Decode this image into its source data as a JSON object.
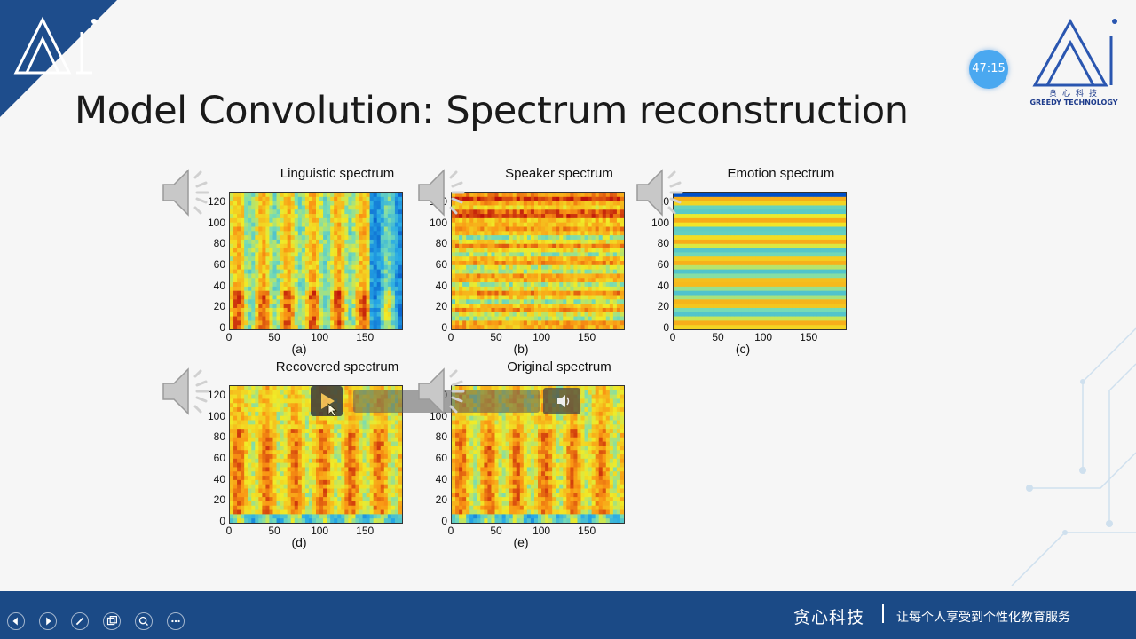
{
  "slide": {
    "title": "Model Convolution: Spectrum reconstruction",
    "timer": "47:15"
  },
  "logo": {
    "cn": "贪心科技",
    "en": "GREEDY TECHNOLOGY"
  },
  "colors": {
    "brand_blue": "#1e3c8c",
    "footer_blue": "#1b4a86",
    "timer_blue": "#4aa8f0"
  },
  "panels": [
    {
      "title": "Linguistic spectrum",
      "sublabel": "(a)",
      "y_ticks": [
        "0",
        "20",
        "40",
        "60",
        "80",
        "100",
        "120"
      ],
      "x_ticks": [
        "0",
        "50",
        "100",
        "150"
      ]
    },
    {
      "title": "Speaker spectrum",
      "sublabel": "(b)",
      "y_ticks": [
        "0",
        "20",
        "40",
        "60",
        "80",
        "100",
        "120"
      ],
      "x_ticks": [
        "0",
        "50",
        "100",
        "150"
      ]
    },
    {
      "title": "Emotion spectrum",
      "sublabel": "(c)",
      "y_ticks": [
        "0",
        "20",
        "40",
        "60",
        "80",
        "100",
        "120"
      ],
      "x_ticks": [
        "0",
        "50",
        "100",
        "150"
      ]
    },
    {
      "title": "Recovered spectrum",
      "sublabel": "(d)",
      "y_ticks": [
        "0",
        "20",
        "40",
        "60",
        "80",
        "100",
        "120"
      ],
      "x_ticks": [
        "0",
        "50",
        "100",
        "150"
      ]
    },
    {
      "title": "Original spectrum",
      "sublabel": "(e)",
      "y_ticks": [
        "0",
        "20",
        "40",
        "60",
        "80",
        "100",
        "120"
      ],
      "x_ticks": [
        "0",
        "50",
        "100",
        "150"
      ]
    }
  ],
  "footer": {
    "brand": "贪心科技",
    "slogan": "让每个人享受到个性化教育服务",
    "controls": [
      "previous-icon",
      "next-icon",
      "pen-icon",
      "slides-icon",
      "zoom-icon",
      "more-icon"
    ]
  }
}
